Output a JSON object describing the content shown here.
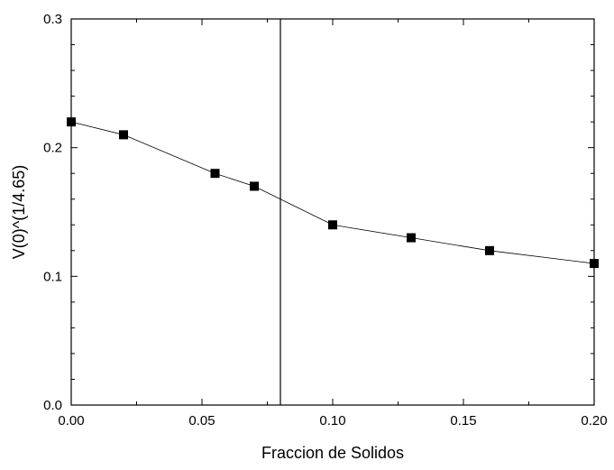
{
  "chart_data": {
    "type": "line",
    "title": "",
    "xlabel": "Fraccion de Solidos",
    "ylabel": "V(0)^(1/4.65)",
    "xlim": [
      0.0,
      0.2
    ],
    "ylim": [
      0.0,
      0.3
    ],
    "x_ticks": [
      "0.00",
      "0.05",
      "0.10",
      "0.15",
      "0.20"
    ],
    "x_tick_values": [
      0.0,
      0.05,
      0.1,
      0.15,
      0.2
    ],
    "y_ticks": [
      "0.0",
      "0.1",
      "0.2",
      "0.3"
    ],
    "y_tick_values": [
      0.0,
      0.1,
      0.2,
      0.3
    ],
    "vertical_reference_line_x": 0.08,
    "grid": false,
    "legend": "none",
    "series": [
      {
        "marker": "filled-square",
        "color": "#000000",
        "x": [
          0.0,
          0.02,
          0.055,
          0.07,
          0.1,
          0.13,
          0.16,
          0.2
        ],
        "y": [
          0.22,
          0.21,
          0.18,
          0.17,
          0.14,
          0.13,
          0.12,
          0.11
        ]
      }
    ]
  }
}
